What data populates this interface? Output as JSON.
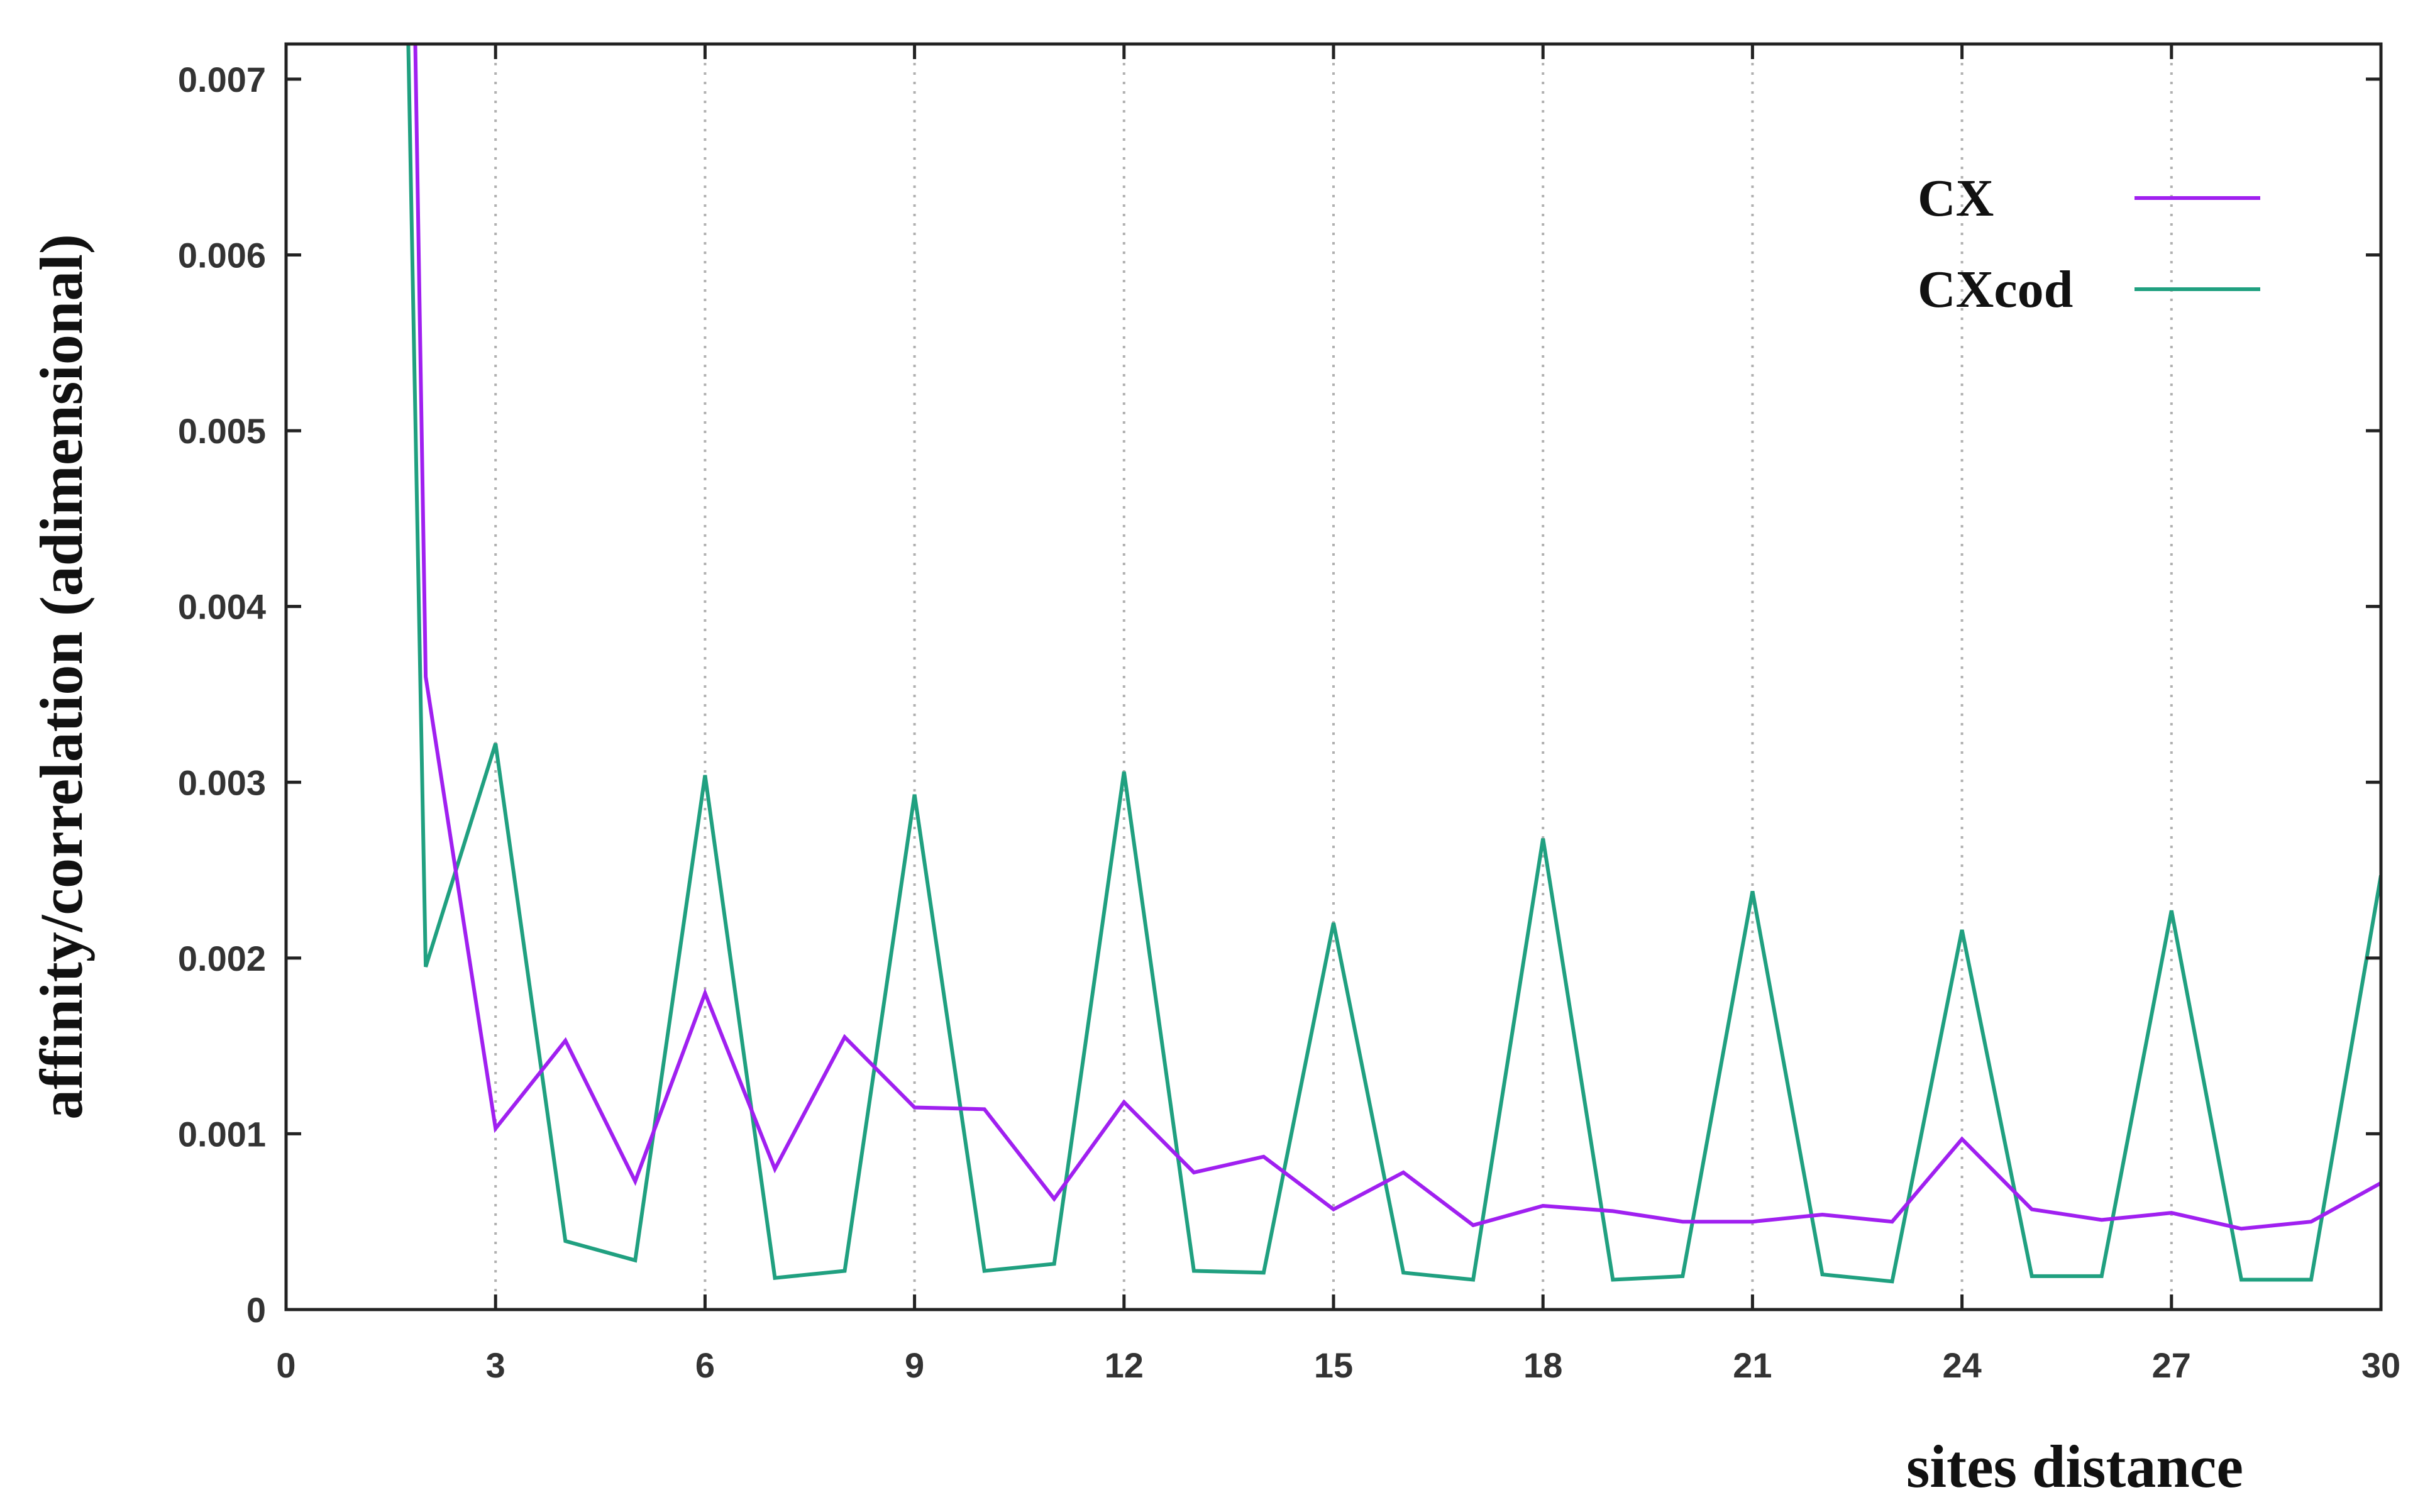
{
  "chart_data": {
    "type": "line",
    "title": "",
    "xlabel": "sites distance",
    "ylabel": "affinity/correlation (adimensional)",
    "xlim": [
      0,
      30
    ],
    "ylim": [
      0,
      0.0072
    ],
    "xticks": [
      0,
      3,
      6,
      9,
      12,
      15,
      18,
      21,
      24,
      27,
      30
    ],
    "xtick_labels": [
      "0",
      "3",
      "6",
      "9",
      "12",
      "15",
      "18",
      "21",
      "24",
      "27",
      "30"
    ],
    "yticks": [
      0,
      0.001,
      0.002,
      0.003,
      0.004,
      0.005,
      0.006,
      0.007
    ],
    "ytick_labels": [
      "0",
      "0.001",
      "0.002",
      "0.003",
      "0.004",
      "0.005",
      "0.006",
      "0.007"
    ],
    "grid": "vertical dotted lines at x ticks",
    "legend_position": "top-right",
    "series": [
      {
        "name": "CX",
        "color": "#a020f0",
        "x": [
          1.85,
          2,
          3,
          4,
          5,
          6,
          7,
          8,
          9,
          10,
          11,
          12,
          13,
          14,
          15,
          16,
          17,
          18,
          19,
          20,
          21,
          22,
          23,
          24,
          25,
          26,
          27,
          28,
          29,
          30
        ],
        "y": [
          0.0072,
          0.0036,
          0.00103,
          0.00153,
          0.00073,
          0.0018,
          0.0008,
          0.00155,
          0.00115,
          0.00114,
          0.00063,
          0.00118,
          0.00078,
          0.00087,
          0.00057,
          0.00078,
          0.00048,
          0.00059,
          0.00056,
          0.0005,
          0.0005,
          0.00054,
          0.0005,
          0.00097,
          0.00057,
          0.00051,
          0.00055,
          0.00046,
          0.0005,
          0.00072
        ]
      },
      {
        "name": "CXcod",
        "color": "#20a080",
        "x": [
          1.75,
          2,
          3,
          4,
          5,
          6,
          7,
          8,
          9,
          10,
          11,
          12,
          13,
          14,
          15,
          16,
          17,
          18,
          19,
          20,
          21,
          22,
          23,
          24,
          25,
          26,
          27,
          28,
          29,
          30
        ],
        "y": [
          0.0072,
          0.00195,
          0.00322,
          0.00039,
          0.00028,
          0.00304,
          0.00018,
          0.00022,
          0.00293,
          0.00022,
          0.00026,
          0.00306,
          0.00022,
          0.00021,
          0.0022,
          0.00021,
          0.00017,
          0.00268,
          0.00017,
          0.00019,
          0.00238,
          0.0002,
          0.00016,
          0.00216,
          0.00019,
          0.00019,
          0.00227,
          0.00017,
          0.00017,
          0.00247
        ]
      }
    ]
  }
}
